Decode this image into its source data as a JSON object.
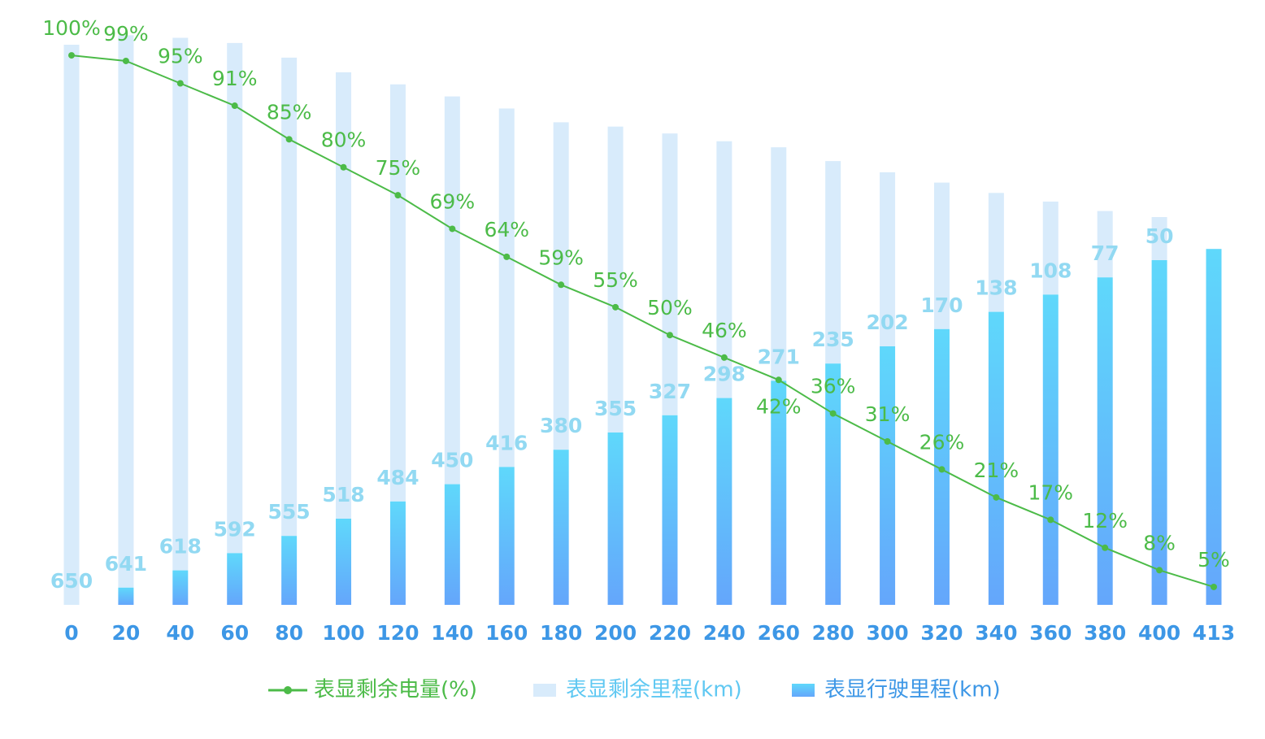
{
  "chart_data": {
    "type": "bar-line",
    "categories": [
      "0",
      "20",
      "40",
      "60",
      "80",
      "100",
      "120",
      "140",
      "160",
      "180",
      "200",
      "220",
      "240",
      "260",
      "280",
      "300",
      "320",
      "340",
      "360",
      "380",
      "400",
      "413"
    ],
    "series": [
      {
        "name": "表显行驶里程(km)",
        "type": "bar",
        "color": "#64a6fb",
        "color_top": "#5fd8fb",
        "values": [
          0,
          20,
          40,
          60,
          80,
          100,
          120,
          140,
          160,
          180,
          200,
          220,
          240,
          260,
          280,
          300,
          320,
          340,
          360,
          380,
          400,
          413
        ]
      },
      {
        "name": "表显剩余里程(km)",
        "type": "bar",
        "color": "#d8ebfb",
        "values": [
          650,
          641,
          618,
          592,
          555,
          518,
          484,
          450,
          416,
          380,
          355,
          327,
          298,
          271,
          235,
          202,
          170,
          138,
          108,
          77,
          50,
          null
        ]
      },
      {
        "name": "表显剩余电量(%)",
        "type": "line",
        "axis": "y2",
        "color": "#4cbb48",
        "values": [
          100,
          99,
          95,
          91,
          85,
          80,
          75,
          69,
          64,
          59,
          55,
          50,
          46,
          42,
          36,
          31,
          26,
          21,
          17,
          12,
          8,
          5
        ],
        "value_labels": [
          "100%",
          "99%",
          "95%",
          "91%",
          "85%",
          "80%",
          "75%",
          "69%",
          "64%",
          "59%",
          "55%",
          "50%",
          "46%",
          "42%",
          "36%",
          "31%",
          "26%",
          "21%",
          "17%",
          "12%",
          "8%",
          "5%"
        ]
      }
    ],
    "ylim": [
      0,
      700
    ],
    "y2lim": [
      1.8,
      109.6
    ],
    "stacked": true
  }
}
